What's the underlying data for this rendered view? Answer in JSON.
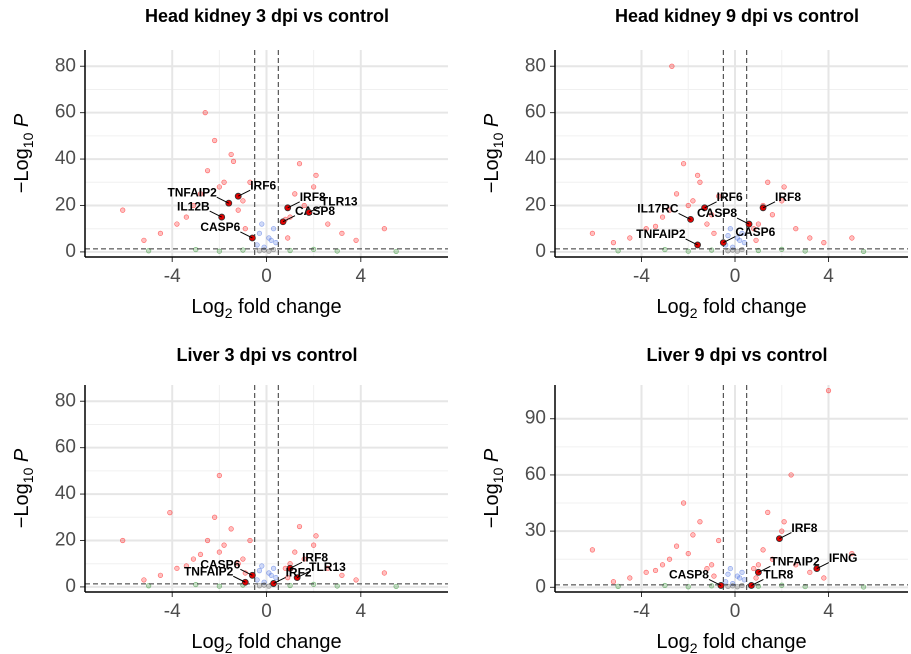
{
  "chart_data": [
    {
      "type": "scatter",
      "title": "Head kidney 3 dpi vs control",
      "x_label": [
        "Log",
        "2",
        " fold change"
      ],
      "y_label": [
        "−Log",
        "10",
        " P"
      ],
      "xlim": [
        -7.7,
        7.7
      ],
      "ylim": [
        -2.2,
        87
      ],
      "xticks": [
        -4,
        0,
        4
      ],
      "yticks": [
        0,
        20,
        40,
        60,
        80
      ],
      "grid": true,
      "vlines": [
        -0.5,
        0.5
      ],
      "hline": 1.3,
      "series": [
        {
          "color": "#ff0000",
          "x": [
            -3.1,
            -2.5,
            -2.0,
            -1.5,
            -1.2,
            -0.9,
            -3.8,
            -4.5,
            -2.8,
            -1.8,
            -1.0,
            -2.2,
            -3.4,
            -5.2,
            -6.1,
            0.8,
            1.2,
            1.6,
            2.1,
            2.6,
            3.2,
            0.9,
            1.4,
            2.0,
            3.8,
            5.0,
            -0.7,
            1.0,
            -2.6,
            -1.4
          ],
          "y": [
            20,
            35,
            28,
            42,
            18,
            10,
            12,
            8,
            25,
            30,
            22,
            48,
            15,
            5,
            18,
            14,
            25,
            20,
            33,
            12,
            8,
            6,
            38,
            28,
            5,
            10,
            30,
            15,
            60,
            39
          ]
        },
        {
          "color": "#4169e1",
          "x": [
            -0.4,
            -0.3,
            -0.2,
            0.2,
            0.3,
            0.4,
            -0.1,
            0.1
          ],
          "y": [
            3,
            8,
            12,
            5,
            10,
            4,
            2,
            6
          ]
        },
        {
          "color": "#228b22",
          "x": [
            -5,
            -3,
            -2,
            -1,
            1,
            2,
            3,
            5.5
          ],
          "y": [
            0.5,
            1,
            0.3,
            0.8,
            0.6,
            1.1,
            0.4,
            0.2
          ]
        },
        {
          "color": "#555555",
          "x": [
            -0.3,
            -0.1,
            0.1,
            0.3
          ],
          "y": [
            0.5,
            0.8,
            0.3,
            1
          ]
        }
      ],
      "annotations": [
        {
          "label": "TNFAIP2",
          "x": -1.6,
          "y": 21,
          "side": "left"
        },
        {
          "label": "IRF6",
          "x": -1.2,
          "y": 24,
          "side": "right"
        },
        {
          "label": "IL12B",
          "x": -1.9,
          "y": 15,
          "side": "left"
        },
        {
          "label": "CASP6",
          "x": -0.6,
          "y": 6,
          "side": "left"
        },
        {
          "label": "CASP8",
          "x": 0.7,
          "y": 13,
          "side": "right"
        },
        {
          "label": "IRF8",
          "x": 0.9,
          "y": 19,
          "side": "right"
        },
        {
          "label": "TLR13",
          "x": 1.8,
          "y": 17,
          "side": "right"
        }
      ]
    },
    {
      "type": "scatter",
      "title": "Head kidney 9 dpi vs control",
      "x_label": [
        "Log",
        "2",
        " fold change"
      ],
      "y_label": [
        "−Log",
        "10",
        " P"
      ],
      "xlim": [
        -7.7,
        7.4
      ],
      "ylim": [
        -2.2,
        87
      ],
      "xticks": [
        -4,
        0,
        4
      ],
      "yticks": [
        0,
        20,
        40,
        60,
        80
      ],
      "grid": true,
      "vlines": [
        -0.5,
        0.5
      ],
      "hline": 1.3,
      "series": [
        {
          "color": "#ff0000",
          "x": [
            -3.1,
            -2.5,
            -2.0,
            -1.5,
            -1.2,
            -0.9,
            -3.8,
            -4.5,
            -2.8,
            -1.8,
            -1.0,
            -2.2,
            -3.4,
            -5.2,
            -6.1,
            0.8,
            1.2,
            1.6,
            2.1,
            2.6,
            3.2,
            0.9,
            1.4,
            2.0,
            3.8,
            5.0,
            -0.7,
            1.0,
            -2.7,
            -1.6
          ],
          "y": [
            15,
            25,
            20,
            30,
            12,
            8,
            10,
            6,
            18,
            22,
            16,
            38,
            11,
            4,
            8,
            10,
            20,
            16,
            28,
            10,
            6,
            5,
            30,
            22,
            4,
            6,
            24,
            12,
            80,
            33
          ]
        },
        {
          "color": "#4169e1",
          "x": [
            -0.4,
            -0.3,
            -0.2,
            0.2,
            0.3,
            0.4,
            -0.1,
            0.1
          ],
          "y": [
            3,
            7,
            10,
            5,
            8,
            4,
            2,
            6
          ]
        },
        {
          "color": "#228b22",
          "x": [
            -5,
            -3,
            -2,
            -1,
            1,
            2,
            3,
            5.5
          ],
          "y": [
            0.5,
            1,
            0.3,
            0.8,
            0.6,
            1.1,
            0.4,
            0.2
          ]
        },
        {
          "color": "#555555",
          "x": [
            -0.3,
            -0.1,
            0.1,
            0.3
          ],
          "y": [
            0.5,
            0.8,
            0.3,
            1
          ]
        }
      ],
      "annotations": [
        {
          "label": "IRF6",
          "x": -1.3,
          "y": 19,
          "side": "right"
        },
        {
          "label": "IL17RC",
          "x": -1.9,
          "y": 14,
          "side": "left"
        },
        {
          "label": "CASP8",
          "x": 0.6,
          "y": 12,
          "side": "left"
        },
        {
          "label": "IRF8",
          "x": 1.2,
          "y": 19,
          "side": "right"
        },
        {
          "label": "CASP6",
          "x": -0.5,
          "y": 4,
          "side": "right"
        },
        {
          "label": "TNFAIP2",
          "x": -1.6,
          "y": 3,
          "side": "left"
        }
      ]
    },
    {
      "type": "scatter",
      "title": "Liver 3 dpi vs control",
      "x_label": [
        "Log",
        "2",
        " fold change"
      ],
      "y_label": [
        "−Log",
        "10",
        " P"
      ],
      "xlim": [
        -7.7,
        7.7
      ],
      "ylim": [
        -2.2,
        87
      ],
      "xticks": [
        -4,
        0,
        4
      ],
      "yticks": [
        0,
        20,
        40,
        60,
        80
      ],
      "grid": true,
      "vlines": [
        -0.5,
        0.5
      ],
      "hline": 1.3,
      "series": [
        {
          "color": "#ff0000",
          "x": [
            -3.1,
            -2.5,
            -2.0,
            -1.5,
            -1.2,
            -0.9,
            -3.8,
            -4.5,
            -2.8,
            -1.8,
            -1.0,
            -2.2,
            -3.4,
            -5.2,
            -6.1,
            0.8,
            1.2,
            1.6,
            2.1,
            2.6,
            3.2,
            0.9,
            1.4,
            2.0,
            3.8,
            5.0,
            -0.7,
            1.0,
            -2.0,
            -4.1
          ],
          "y": [
            12,
            20,
            15,
            25,
            10,
            6,
            8,
            5,
            14,
            18,
            12,
            30,
            9,
            3,
            20,
            8,
            15,
            12,
            22,
            8,
            5,
            4,
            26,
            18,
            3,
            6,
            20,
            10,
            48,
            32
          ]
        },
        {
          "color": "#4169e1",
          "x": [
            -0.4,
            -0.3,
            -0.2,
            0.2,
            0.3,
            0.4,
            -0.1,
            0.1
          ],
          "y": [
            3,
            7,
            9,
            5,
            8,
            4,
            2,
            6
          ]
        },
        {
          "color": "#228b22",
          "x": [
            -5,
            -3,
            -2,
            -1,
            1,
            2,
            3,
            5.5
          ],
          "y": [
            0.5,
            1,
            0.3,
            0.8,
            0.6,
            1.1,
            0.4,
            0.2
          ]
        },
        {
          "color": "#555555",
          "x": [
            -0.3,
            -0.1,
            0.1,
            0.3
          ],
          "y": [
            0.5,
            0.8,
            0.3,
            1
          ]
        }
      ],
      "annotations": [
        {
          "label": "CASP6",
          "x": -0.6,
          "y": 5,
          "side": "left"
        },
        {
          "label": "IRF8",
          "x": 1.0,
          "y": 8,
          "side": "right"
        },
        {
          "label": "TLR13",
          "x": 1.3,
          "y": 4,
          "side": "right"
        },
        {
          "label": "TNFAIP2",
          "x": -0.9,
          "y": 2,
          "side": "left"
        },
        {
          "label": "IRF2",
          "x": 0.3,
          "y": 1.5,
          "side": "right"
        }
      ]
    },
    {
      "type": "scatter",
      "title": "Liver 9 dpi vs control",
      "x_label": [
        "Log",
        "2",
        " fold change"
      ],
      "y_label": [
        "−Log",
        "10",
        " P"
      ],
      "xlim": [
        -7.7,
        7.4
      ],
      "ylim": [
        -2.5,
        108
      ],
      "xticks": [
        -4,
        0,
        4
      ],
      "yticks": [
        0,
        30,
        60,
        90
      ],
      "grid": true,
      "vlines": [
        -0.5,
        0.5
      ],
      "hline": 1.3,
      "series": [
        {
          "color": "#ff0000",
          "x": [
            -3.1,
            -2.5,
            -2.0,
            -1.5,
            -1.2,
            -0.9,
            -3.8,
            -4.5,
            -2.8,
            -1.8,
            -1.0,
            -2.2,
            -3.4,
            -5.2,
            -6.1,
            0.8,
            1.2,
            1.6,
            2.1,
            2.6,
            3.2,
            0.9,
            1.4,
            2.0,
            3.8,
            5.0,
            -0.7,
            1.0,
            4.0,
            2.4
          ],
          "y": [
            12,
            22,
            18,
            35,
            10,
            6,
            8,
            5,
            15,
            28,
            12,
            45,
            9,
            3,
            20,
            10,
            20,
            15,
            35,
            12,
            8,
            5,
            40,
            30,
            5,
            18,
            25,
            12,
            105,
            60
          ]
        },
        {
          "color": "#4169e1",
          "x": [
            -0.4,
            -0.3,
            -0.2,
            0.2,
            0.3,
            0.4,
            -0.1,
            0.1
          ],
          "y": [
            3,
            7,
            10,
            5,
            8,
            4,
            2,
            6
          ]
        },
        {
          "color": "#228b22",
          "x": [
            -5,
            -3,
            -2,
            -1,
            1,
            2,
            3,
            5.5
          ],
          "y": [
            0.5,
            1,
            0.3,
            0.8,
            0.6,
            1.1,
            0.4,
            0.2
          ]
        },
        {
          "color": "#555555",
          "x": [
            -0.3,
            -0.1,
            0.1,
            0.3
          ],
          "y": [
            0.5,
            0.8,
            0.3,
            1
          ]
        }
      ],
      "annotations": [
        {
          "label": "IRF8",
          "x": 1.9,
          "y": 26,
          "side": "right"
        },
        {
          "label": "IFNG",
          "x": 3.5,
          "y": 10,
          "side": "right"
        },
        {
          "label": "TNFAIP2",
          "x": 1.0,
          "y": 8,
          "side": "right"
        },
        {
          "label": "CASP8",
          "x": -0.6,
          "y": 1,
          "side": "left"
        },
        {
          "label": "TLR8",
          "x": 0.7,
          "y": 1,
          "side": "right"
        }
      ]
    }
  ]
}
